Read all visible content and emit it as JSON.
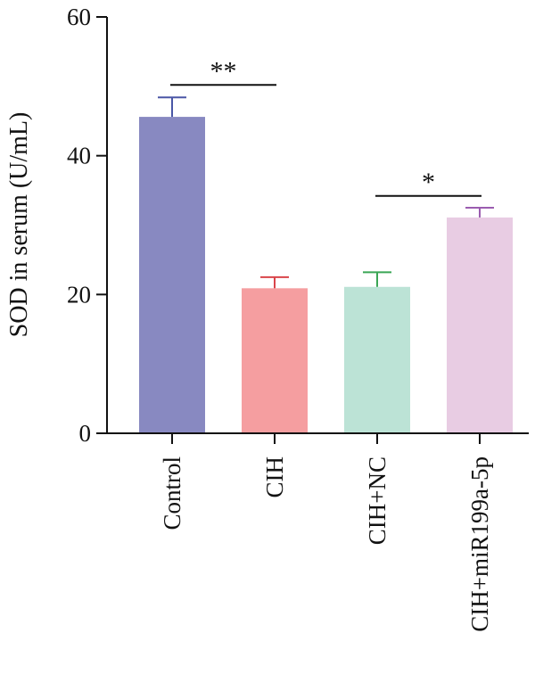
{
  "chart_data": {
    "type": "bar",
    "ylabel": "SOD in serum (U/mL)",
    "xlabel": "",
    "ylim": [
      0,
      60
    ],
    "yticks": [
      0,
      20,
      40,
      60
    ],
    "categories": [
      "Control",
      "CIH",
      "CIH+NC",
      "CIH+miR199a-5p"
    ],
    "values": [
      45.6,
      20.9,
      21.1,
      31.1
    ],
    "errors": [
      2.8,
      1.6,
      2.1,
      1.4
    ],
    "colors": [
      "#8889c1",
      "#f59ea0",
      "#bce3d6",
      "#e8cce3"
    ],
    "error_colors": [
      "#4a57a6",
      "#d9444a",
      "#3aa655",
      "#9b5cb0"
    ],
    "grid": false,
    "significance": [
      {
        "from": 0,
        "to": 1,
        "label": "**",
        "y": 52
      },
      {
        "from": 2,
        "to": 3,
        "label": "*",
        "y": 36
      }
    ]
  }
}
